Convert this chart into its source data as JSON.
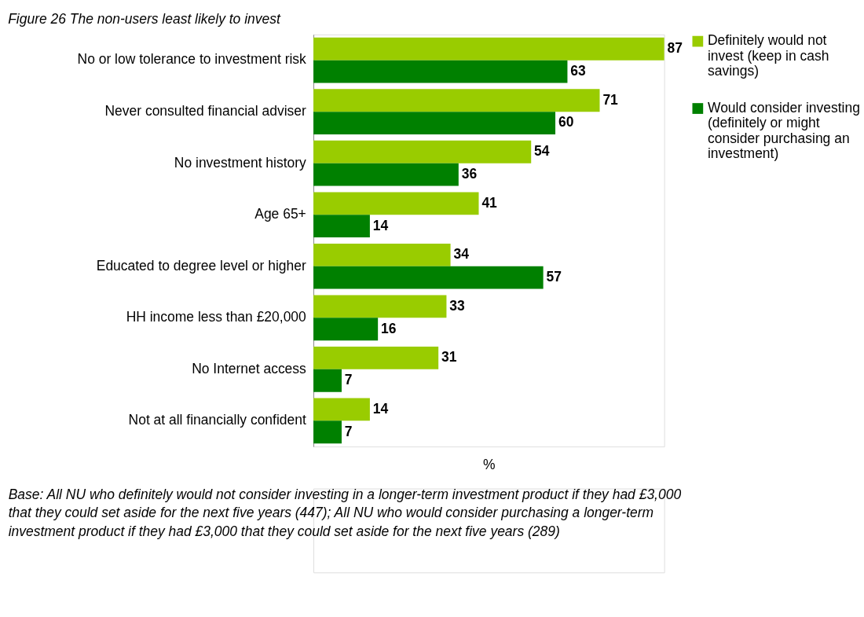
{
  "chart_data": {
    "type": "bar",
    "orientation": "horizontal",
    "title": "Figure 26 The non-users least likely to invest",
    "xlabel": "%",
    "categories": [
      "No or low tolerance to investment risk",
      "Never consulted financial adviser",
      "No investment history",
      "Age 65+",
      "Educated to degree level or higher",
      "HH income less than £20,000",
      "No Internet access",
      "Not at all financially confident"
    ],
    "series": [
      {
        "name": "Definitely would not invest (keep in cash savings)",
        "color": "#99cc00",
        "values": [
          87,
          71,
          54,
          41,
          34,
          33,
          31,
          14
        ]
      },
      {
        "name": "Would consider investing (definitely or might consider purchasing an investment)",
        "color": "#008000",
        "values": [
          63,
          60,
          36,
          14,
          57,
          16,
          7,
          7
        ]
      }
    ],
    "data_labels": true,
    "legend": "right",
    "grid": false,
    "annotations": [
      "Base: All NU who definitely would not consider investing in a longer-term investment product if they had £3,000 that they could set aside for the next five years (447); All NU who would consider purchasing a longer-term investment product if they had £3,000 that they could set aside for the next five years (289)"
    ]
  }
}
